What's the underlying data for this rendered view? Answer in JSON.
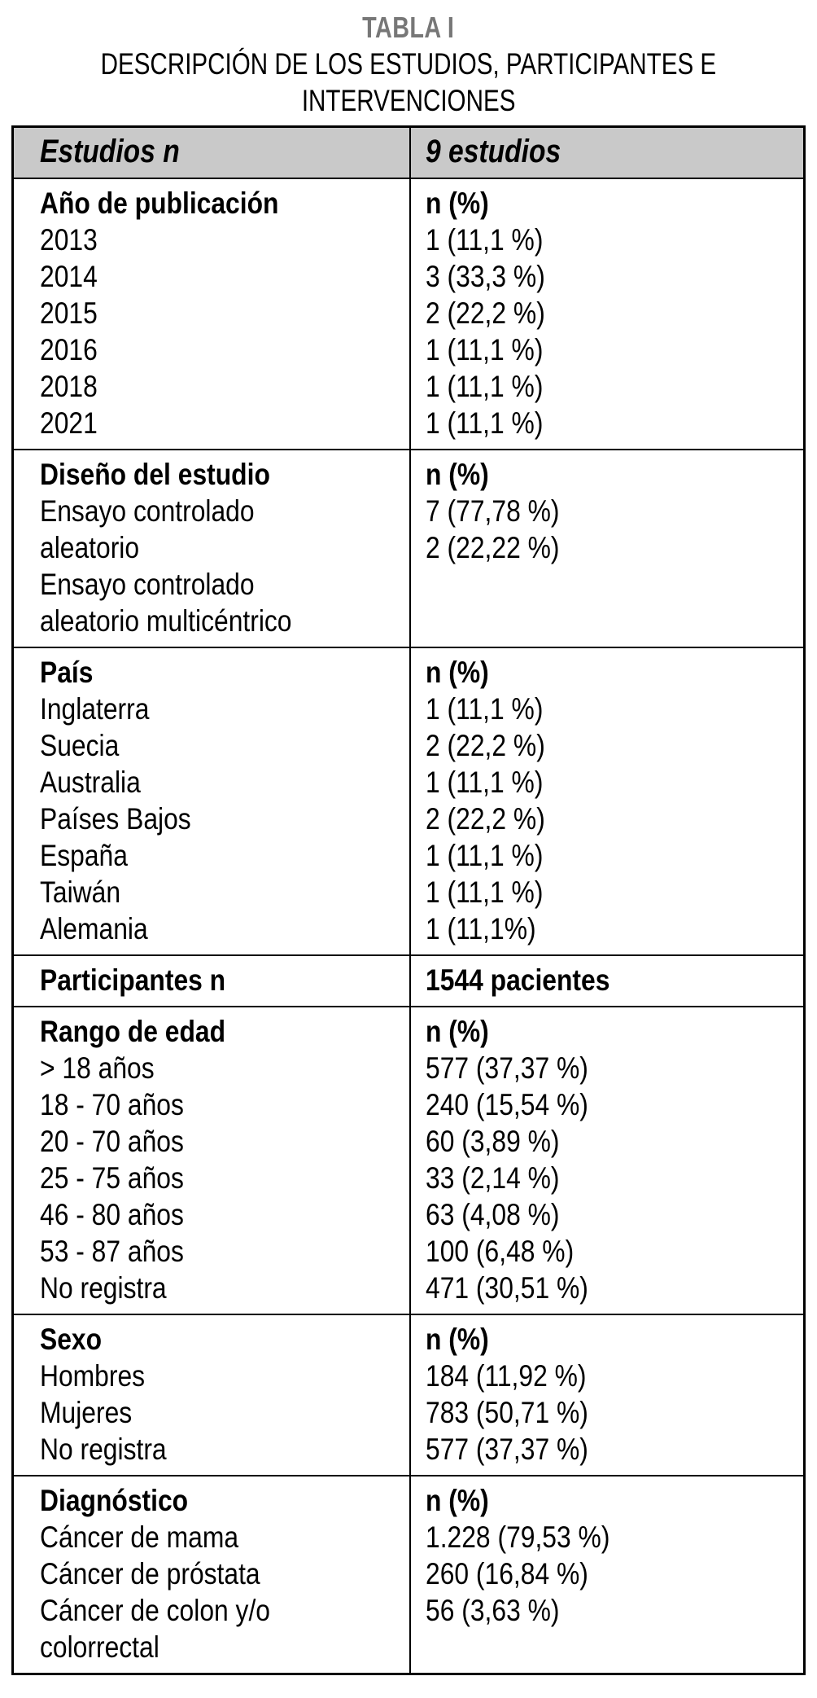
{
  "page": {
    "title": "TABLA I",
    "subtitle_lines": [
      "DESCRIPCIÓN DE LOS ESTUDIOS, PARTICIPANTES E",
      "INTERVENCIONES"
    ]
  },
  "colors": {
    "header_bg": "#c9c9c9",
    "title_gray": "#777777",
    "border": "#000000",
    "text": "#000000",
    "page_bg": "#ffffff"
  },
  "table": {
    "header": {
      "left": "Estudios n",
      "right": "9 estudios"
    },
    "sections": [
      {
        "left": [
          "Año de publicación",
          "2013",
          "2014",
          "2015",
          "2016",
          "2018",
          "2021"
        ],
        "right": [
          "n (%)",
          "1 (11,1 %)",
          "3 (33,3 %)",
          "2 (22,2 %)",
          "1 (11,1 %)",
          "1 (11,1 %)",
          "1 (11,1 %)"
        ]
      },
      {
        "left": [
          "Diseño del estudio",
          "Ensayo controlado",
          "aleatorio",
          "Ensayo controlado",
          "aleatorio multicéntrico"
        ],
        "right": [
          "n (%)",
          "7 (77,78 %)",
          "2 (22,22 %)"
        ]
      },
      {
        "left": [
          "País",
          "Inglaterra",
          "Suecia",
          "Australia",
          "Países Bajos",
          "España",
          "Taiwán",
          "Alemania"
        ],
        "right": [
          "n (%)",
          "1 (11,1 %)",
          "2 (22,2 %)",
          "1 (11,1 %)",
          "2 (22,2 %)",
          "1 (11,1 %)",
          "1 (11,1 %)",
          "1 (11,1%)"
        ]
      },
      {
        "left": [
          "Participantes n"
        ],
        "right": [
          "1544 pacientes"
        ]
      },
      {
        "left": [
          "Rango de edad",
          "> 18 años",
          "18 - 70 años",
          "20 - 70 años",
          "25 - 75 años",
          "46 - 80 años",
          "53 - 87 años",
          "No registra"
        ],
        "right": [
          "n (%)",
          "577 (37,37 %)",
          "240 (15,54 %)",
          "60 (3,89 %)",
          "33 (2,14 %)",
          "63 (4,08 %)",
          "100 (6,48 %)",
          "471 (30,51 %)"
        ]
      },
      {
        "left": [
          "Sexo",
          "Hombres",
          "Mujeres",
          "No registra"
        ],
        "right": [
          "n (%)",
          "184 (11,92 %)",
          "783 (50,71 %)",
          "577 (37,37 %)"
        ]
      },
      {
        "left": [
          "Diagnóstico",
          "Cáncer de mama",
          "Cáncer de próstata",
          "Cáncer de colon y/o",
          "colorrectal"
        ],
        "right": [
          "n (%)",
          "1.228 (79,53 %)",
          "260 (16,84 %)",
          "56 (3,63 %)"
        ]
      }
    ]
  }
}
